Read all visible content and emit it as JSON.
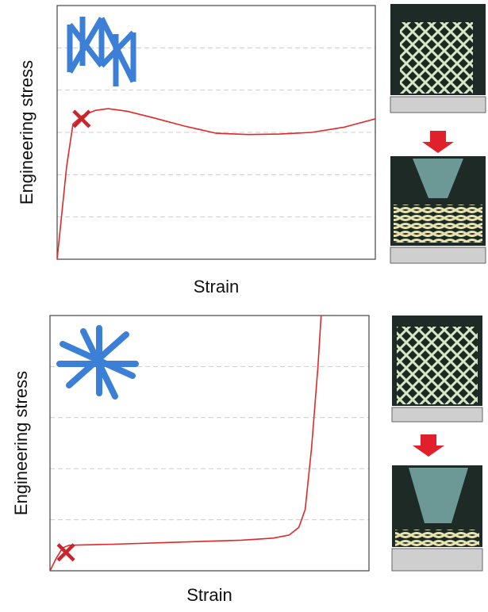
{
  "chart_data": [
    {
      "type": "line",
      "x_label": "Strain",
      "y_label": "Engineering stress",
      "x": [
        0,
        0.3,
        0.5,
        0.8,
        1.2,
        1.6,
        2.2,
        3,
        4,
        5,
        6,
        7,
        8,
        9,
        10
      ],
      "values": [
        0,
        2.2,
        3.2,
        3.4,
        3.52,
        3.56,
        3.5,
        3.35,
        3.15,
        2.98,
        2.95,
        2.96,
        3.0,
        3.12,
        3.32
      ],
      "color": "#e02828",
      "xlim": [
        0,
        10
      ],
      "ylim": [
        0,
        6
      ],
      "yticks": [
        1,
        2,
        3,
        4,
        5
      ],
      "grid": true,
      "marker": {
        "x": 0.77,
        "y": 3.32,
        "color": "#c8262c"
      }
    },
    {
      "type": "line",
      "x_label": "Strain",
      "y_label": "Engineering stress",
      "x": [
        0,
        0.2,
        0.4,
        0.6,
        2,
        4,
        6,
        7,
        7.5,
        7.8,
        8.0,
        8.2,
        8.4,
        8.5
      ],
      "values": [
        0,
        0.25,
        0.45,
        0.5,
        0.52,
        0.56,
        0.6,
        0.64,
        0.7,
        0.85,
        1.2,
        2.4,
        4.0,
        5.0
      ],
      "color": "#e02828",
      "xlim": [
        0,
        10
      ],
      "ylim": [
        0,
        5
      ],
      "yticks": [
        1,
        2,
        3,
        4
      ],
      "grid": true,
      "marker": {
        "x": 0.5,
        "y": 0.36,
        "color": "#c8262c"
      }
    }
  ]
}
